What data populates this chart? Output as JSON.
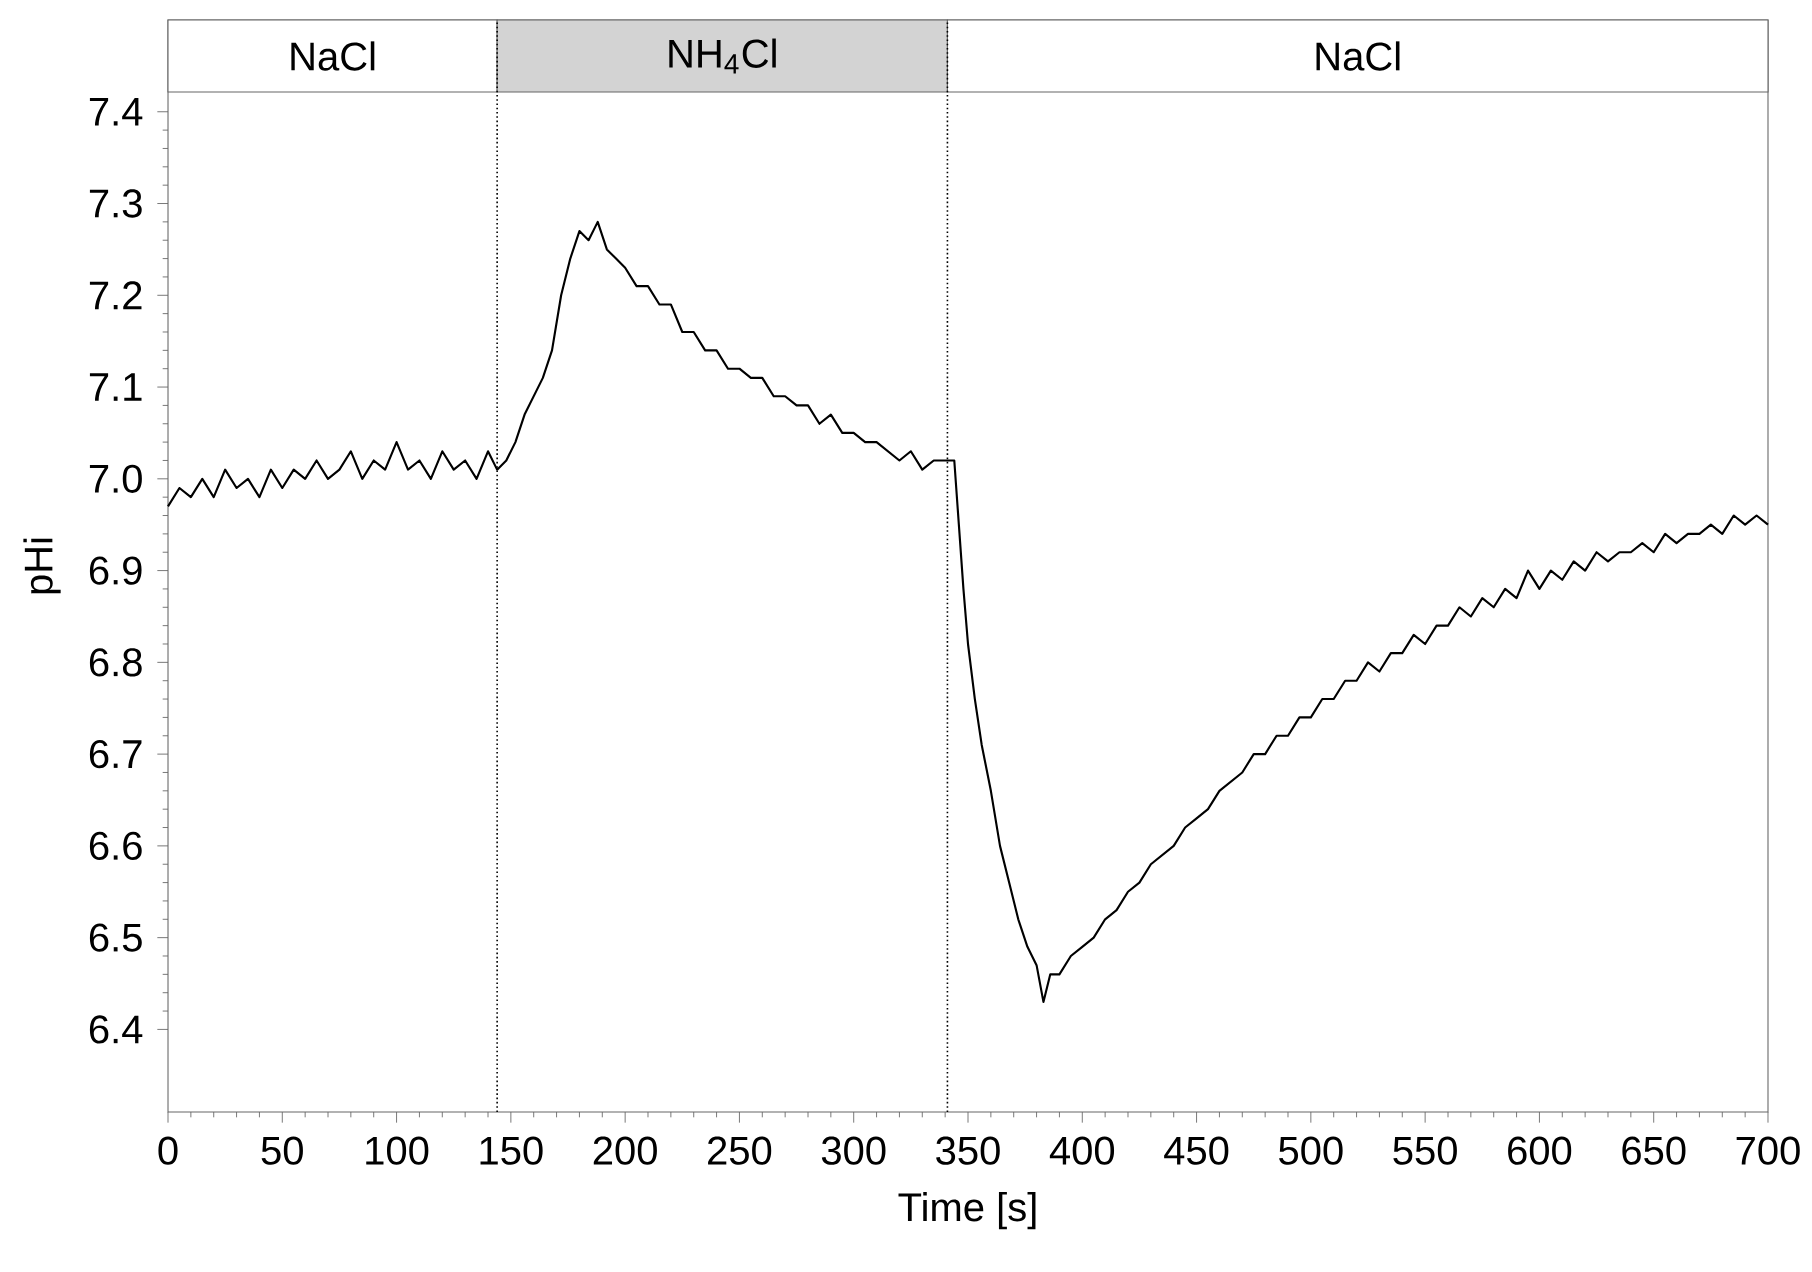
{
  "chart_data": {
    "type": "line",
    "xlabel": "Time [s]",
    "ylabel": "pHi",
    "x": [
      0,
      5,
      10,
      15,
      20,
      25,
      30,
      35,
      40,
      45,
      50,
      55,
      60,
      65,
      70,
      75,
      80,
      85,
      90,
      95,
      100,
      105,
      110,
      115,
      120,
      125,
      130,
      135,
      140,
      144,
      148,
      152,
      156,
      160,
      164,
      168,
      172,
      176,
      180,
      184,
      188,
      192,
      196,
      200,
      205,
      210,
      215,
      220,
      225,
      230,
      235,
      240,
      245,
      250,
      255,
      260,
      265,
      270,
      275,
      280,
      285,
      290,
      295,
      300,
      305,
      310,
      315,
      320,
      325,
      330,
      335,
      340,
      344,
      346,
      348,
      350,
      353,
      356,
      360,
      364,
      368,
      372,
      376,
      380,
      383,
      386,
      390,
      395,
      400,
      405,
      410,
      415,
      420,
      425,
      430,
      435,
      440,
      445,
      450,
      455,
      460,
      465,
      470,
      475,
      480,
      485,
      490,
      495,
      500,
      505,
      510,
      515,
      520,
      525,
      530,
      535,
      540,
      545,
      550,
      555,
      560,
      565,
      570,
      575,
      580,
      585,
      590,
      595,
      600,
      605,
      610,
      615,
      620,
      625,
      630,
      635,
      640,
      645,
      650,
      655,
      660,
      665,
      670,
      675,
      680,
      685,
      690,
      695,
      700
    ],
    "series": [
      {
        "color": "#000000",
        "values": [
          6.97,
          6.99,
          6.98,
          7.0,
          6.98,
          7.01,
          6.99,
          7.0,
          6.98,
          7.01,
          6.99,
          7.01,
          7.0,
          7.02,
          7.0,
          7.01,
          7.03,
          7.0,
          7.02,
          7.01,
          7.04,
          7.01,
          7.02,
          7.0,
          7.03,
          7.01,
          7.02,
          7.0,
          7.03,
          7.01,
          7.02,
          7.04,
          7.07,
          7.09,
          7.11,
          7.14,
          7.2,
          7.24,
          7.27,
          7.26,
          7.28,
          7.25,
          7.24,
          7.23,
          7.21,
          7.21,
          7.19,
          7.19,
          7.16,
          7.16,
          7.14,
          7.14,
          7.12,
          7.12,
          7.11,
          7.11,
          7.09,
          7.09,
          7.08,
          7.08,
          7.06,
          7.07,
          7.05,
          7.05,
          7.04,
          7.04,
          7.03,
          7.02,
          7.03,
          7.01,
          7.02,
          7.02,
          7.02,
          6.95,
          6.88,
          6.82,
          6.76,
          6.71,
          6.66,
          6.6,
          6.56,
          6.52,
          6.49,
          6.47,
          6.43,
          6.46,
          6.46,
          6.48,
          6.49,
          6.5,
          6.52,
          6.53,
          6.55,
          6.56,
          6.58,
          6.59,
          6.6,
          6.62,
          6.63,
          6.64,
          6.66,
          6.67,
          6.68,
          6.7,
          6.7,
          6.72,
          6.72,
          6.74,
          6.74,
          6.76,
          6.76,
          6.78,
          6.78,
          6.8,
          6.79,
          6.81,
          6.81,
          6.83,
          6.82,
          6.84,
          6.84,
          6.86,
          6.85,
          6.87,
          6.86,
          6.88,
          6.87,
          6.9,
          6.88,
          6.9,
          6.89,
          6.91,
          6.9,
          6.92,
          6.91,
          6.92,
          6.92,
          6.93,
          6.92,
          6.94,
          6.93,
          6.94,
          6.94,
          6.95,
          6.94,
          6.96,
          6.95,
          6.96,
          6.95
        ]
      }
    ],
    "xlim": [
      0,
      700
    ],
    "ylim": [
      6.31,
      7.5
    ],
    "xticks": [
      0,
      50,
      100,
      150,
      200,
      250,
      300,
      350,
      400,
      450,
      500,
      550,
      600,
      650,
      700
    ],
    "yticks": [
      6.4,
      6.5,
      6.6,
      6.7,
      6.8,
      6.9,
      {
        "value": 7,
        "label": "7.0"
      },
      7.1,
      7.2,
      7.3,
      7.4
    ],
    "bands": [
      {
        "axis": "x",
        "from": 0,
        "to": 144,
        "label": "NaCl",
        "color": "#ffffff"
      },
      {
        "axis": "x",
        "from": 144,
        "to": 341,
        "label": "NH$_{4}$Cl",
        "color": "#d3d3d3"
      },
      {
        "axis": "x",
        "from": 341,
        "to": 700,
        "label": "NaCl",
        "color": "#ffffff"
      }
    ],
    "ref_lines": [
      {
        "axis": "x",
        "value": 144,
        "line_style": "dotted"
      },
      {
        "axis": "x",
        "value": 341,
        "line_style": "dotted"
      }
    ]
  }
}
